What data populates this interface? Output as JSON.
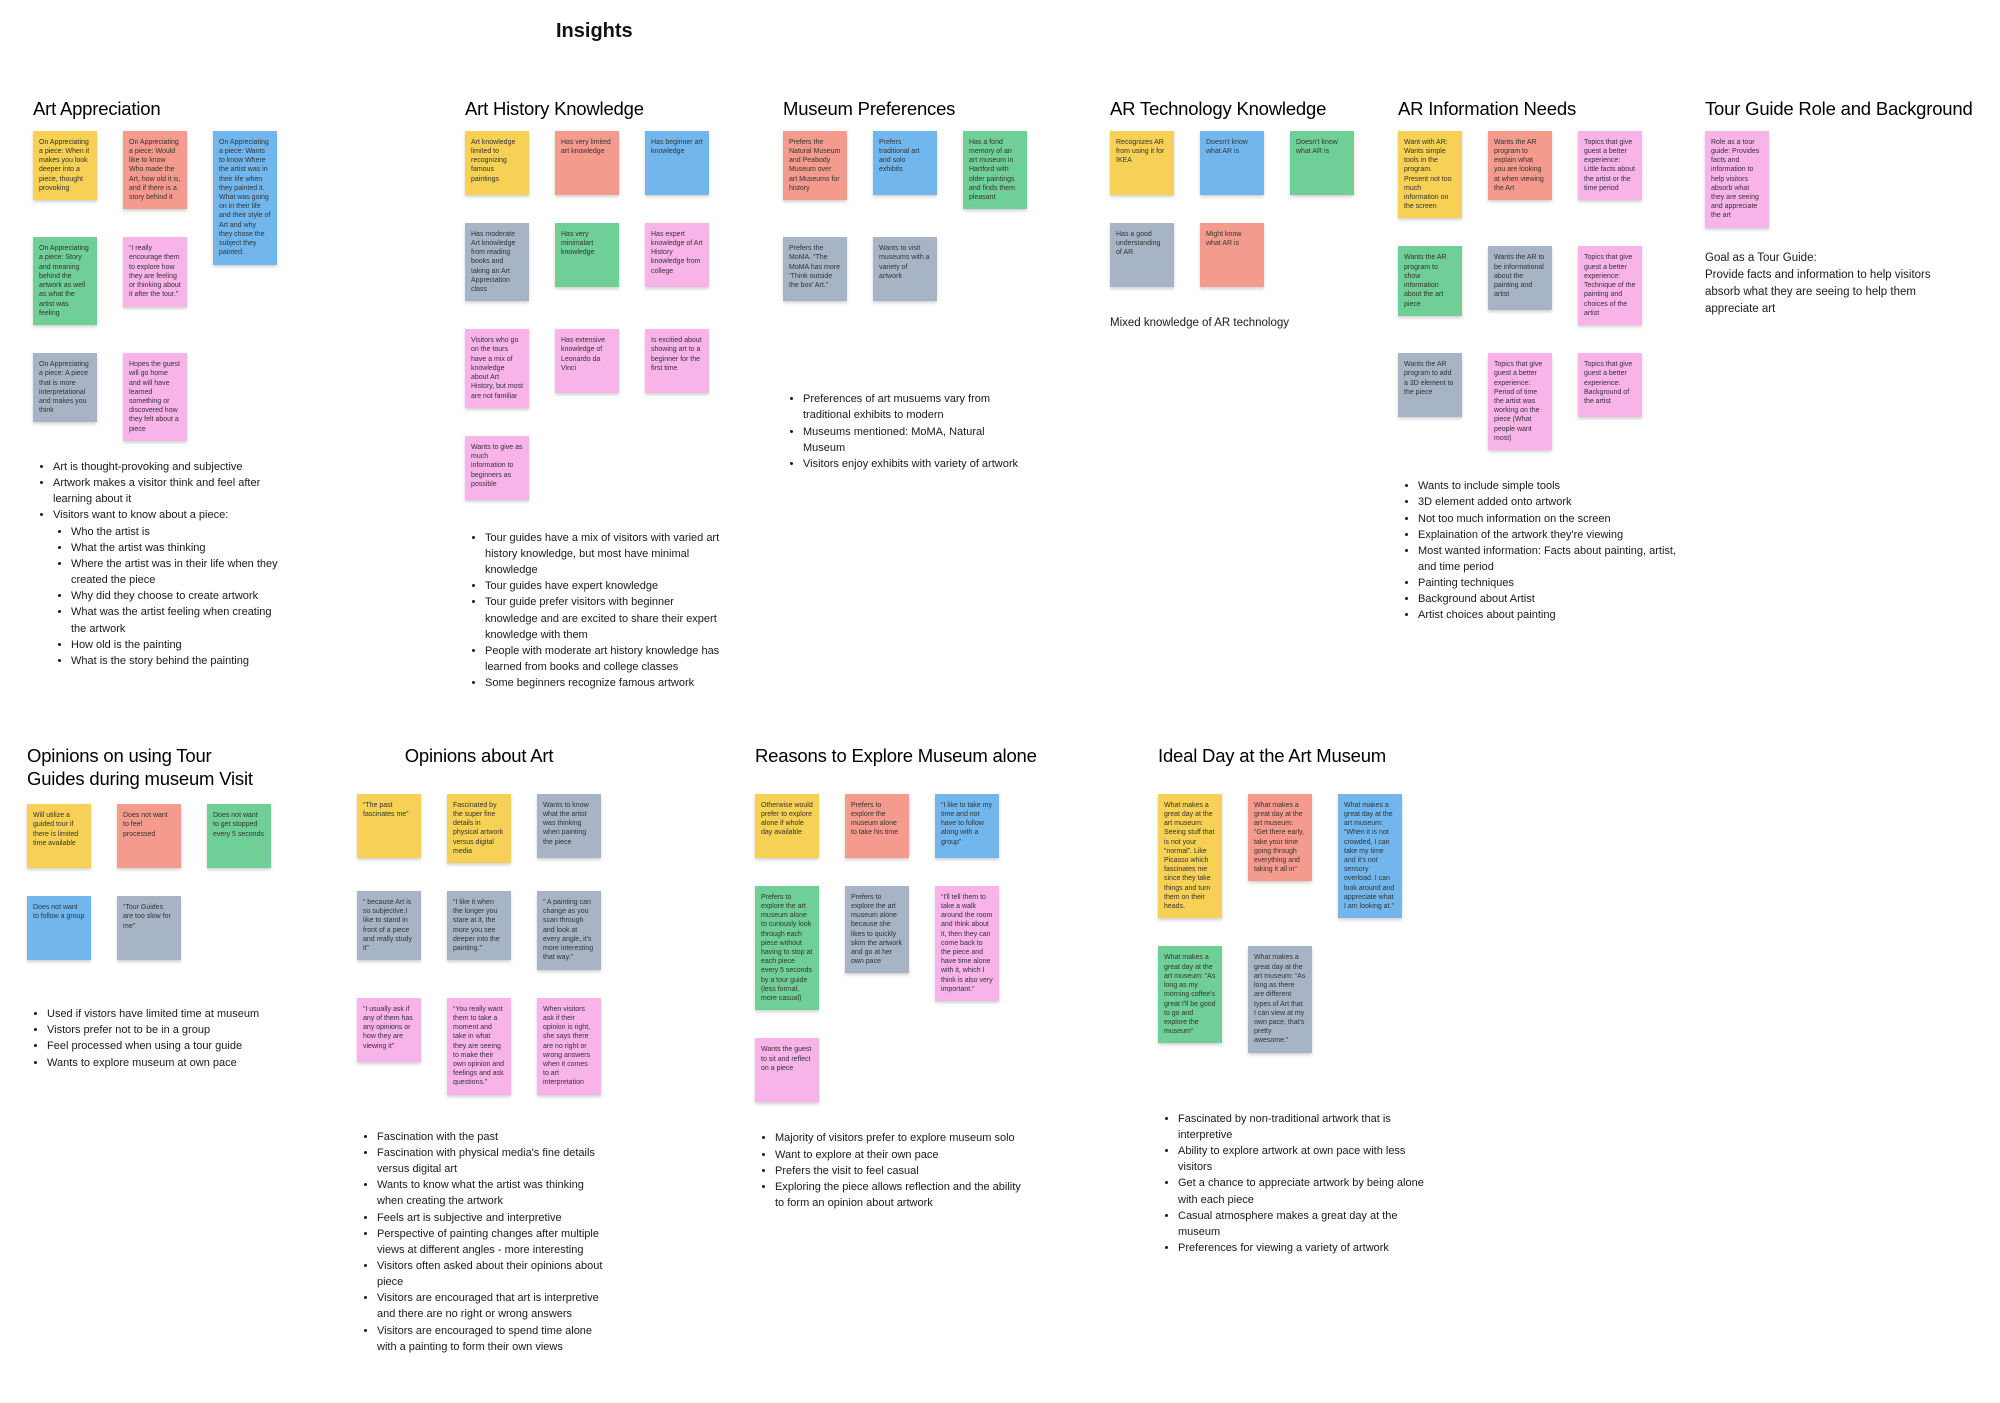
{
  "board": {
    "title": "Insights"
  },
  "colors": {
    "yellow": "#F6D155",
    "salmon": "#F49B8D",
    "blue": "#71B7EE",
    "green": "#70CF96",
    "gray": "#A7B4C5",
    "pink": "#F8B3E9"
  },
  "sections": [
    {
      "title": "Art Appreciation",
      "stickies": [
        {
          "color": "yellow",
          "text": "On Appreciating a piece: When it makes you look deeper into a piece, thought provoking"
        },
        {
          "color": "salmon",
          "text": "On Appreciating a piece:  Would like to know Who made the Art, how old it is, and if there is a story behind it"
        },
        {
          "color": "blue",
          "rowspan": 3,
          "text": "On Appreciating a piece: Wants to know Where the artist was in their life when they painted it. What was going on in their life and their style of Art and why they chose the subject they painted."
        },
        {
          "color": "green",
          "text": "On Appreciating a piece: Story and meaning behind the artwork as well as what the artist was feeling"
        },
        {
          "color": "pink",
          "text": "“I really encourage them to explore how they are feeling or thinking about it after the tour.”"
        },
        {
          "color": "gray",
          "text": "On Appreciating a piece: A piece that is more interpretational and makes you think"
        },
        {
          "color": "pink",
          "text": "Hopes the guest will go home and will have learned something or discovered how they felt about a piece"
        }
      ],
      "bullets": [
        "Art is thought-provoking and subjective",
        "Artwork makes a visitor think and feel after learning about it",
        {
          "text": "Visitors want to know about a piece:",
          "sub": [
            "Who the artist is",
            "What the artist was thinking",
            "Where the artist was in their life when they created the piece",
            "Why did they choose to create artwork",
            "What was the artist feeling when creating the artwork",
            "How old is the painting",
            "What is the story behind the painting"
          ]
        }
      ]
    },
    {
      "title": "Art History Knowledge",
      "stickies": [
        {
          "color": "yellow",
          "text": "Art knowledge limited to recognizing famous paintings"
        },
        {
          "color": "salmon",
          "text": "Has very limited art knowledge"
        },
        {
          "color": "blue",
          "text": "Has beginner art knowledge"
        },
        {
          "color": "gray",
          "text": "Has moderate Art knowledge from reading books and taking an Art Appreciation class"
        },
        {
          "color": "green",
          "text": "Has very minimalart knowledge"
        },
        {
          "color": "pink",
          "text": "Has expert knowledge of Art History knowledge from college"
        },
        {
          "color": "pink",
          "text": "Visitors who go on the tours have a mix of knowledge about Art History, but most are not familiar"
        },
        {
          "color": "pink",
          "text": "Has extensive knowledge of Leonardo da Vinci"
        },
        {
          "color": "pink",
          "text": "Is excitied about showing art to a beginner for the first time"
        },
        {
          "color": "pink",
          "text": "Wants to give as much information to beginners as possible"
        }
      ],
      "bullets": [
        "Tour guides have a mix of visitors with varied art history knowledge, but most have minimal knowledge",
        "Tour guides have expert knowledge",
        "Tour guide prefer visitors with beginner knowledge and are excited to share their expert knowledge with them",
        "People with moderate art history knowledge has learned from books and college classes",
        "Some beginners recognize famous artwork"
      ]
    },
    {
      "title": "Museum Preferences",
      "stickies": [
        {
          "color": "salmon",
          "text": "Prefers the Natural Museum and Peabody Museum over art Museums for history"
        },
        {
          "color": "blue",
          "text": "Prefers traditional art and solo exhibits"
        },
        {
          "color": "green",
          "text": "Has a fond memory of an art museum in Hartford with older paintings and finds them pleasant"
        },
        {
          "color": "gray",
          "text": "Prefers the MoMA. “The MoMA has more ‘Think outside the box’ Art.”"
        },
        {
          "color": "gray",
          "text": "Wants to visit museums with a variety of artwork"
        }
      ],
      "bullets": [
        "Preferences of art musuems vary from traditional exhibits to modern",
        "Museums mentioned: MoMA, Natural Museum",
        "Visitors enjoy exhibits with variety of artwork"
      ]
    },
    {
      "title": "AR Technology Knowledge",
      "stickies": [
        {
          "color": "yellow",
          "text": "Recognizes AR from using it for IKEA"
        },
        {
          "color": "blue",
          "text": "Doesn't know what AR is"
        },
        {
          "color": "green",
          "text": "Doesn't know what AR is"
        },
        {
          "color": "gray",
          "text": "Has a good understanding of AR"
        },
        {
          "color": "salmon",
          "text": "Might know what AR is"
        }
      ],
      "bullets": [],
      "note": "Mixed knowledge of AR technology"
    },
    {
      "title": "AR Information Needs",
      "stickies": [
        {
          "color": "yellow",
          "text": "Want with AR: Wants simple tools in the program. Present not too much information on the screen"
        },
        {
          "color": "salmon",
          "text": "Wants the AR program to explain what you are looking at when viewing the Art"
        },
        {
          "color": "pink",
          "text": "Topics that give guest a better experience:  Little facts about the artist or the time period"
        },
        {
          "color": "green",
          "text": "Wants the AR program to show information about the art piece"
        },
        {
          "color": "gray",
          "text": "Wants the AR to be informational about the painting and artist"
        },
        {
          "color": "pink",
          "text": "Topics that give guest a better experience: Technique of the painting and choices of the artist"
        },
        {
          "color": "gray",
          "text": "Wants the AR program to add a 3D element to the piece"
        },
        {
          "color": "pink",
          "text": "Topics that give guest a better experience: Period of time the artist was working on the piece (What people want most)"
        },
        {
          "color": "pink",
          "text": "Topics that give guest a better experience: Background of the artist"
        }
      ],
      "bullets": [
        "Wants to include simple tools",
        "3D element added onto artwork",
        "Not too much information on the screen",
        "Explaination of the artwork they're viewing",
        "Most wanted information: Facts about painting, artist, and time period",
        "Painting techniques",
        "Background about Artist",
        "Artist choices about painting"
      ]
    },
    {
      "title": "Tour Guide Role and Background",
      "stickies": [
        {
          "color": "pink",
          "text": "Role as a tour guide: Provides facts and information to help visitors absorb what they are seeing and appreciate the art"
        }
      ],
      "bullets": [],
      "goal": "Goal as a Tour Guide:\nProvide facts and information to help visitors absorb what they are seeing to help them appreciate art"
    },
    {
      "title": "Opinions on using Tour Guides during museum Visit",
      "stickies": [
        {
          "color": "yellow",
          "text": "Will utilize a guided tour if there is limited time available"
        },
        {
          "color": "salmon",
          "text": "Does not want to feel processed"
        },
        {
          "color": "green",
          "text": "Does not want to get stopped every 5 seconds"
        },
        {
          "color": "blue",
          "text": "Does not want to follow a group"
        },
        {
          "color": "gray",
          "text": "“Tour Guides are too slow for me”"
        }
      ],
      "bullets": [
        "Used if vistors have limited time at museum",
        "Vistors prefer not to be in a group",
        "Feel processed when using a tour guide",
        "Wants to explore museum at own pace"
      ]
    },
    {
      "title": "Opinions about Art",
      "stickies": [
        {
          "color": "yellow",
          "text": "“The past fascinates me”"
        },
        {
          "color": "yellow",
          "text": "Fascinated by the super fine details in physical artwork versus digital media"
        },
        {
          "color": "gray",
          "text": "Wants to know what the artist was thinking when painting the piece"
        },
        {
          "color": "gray",
          "text": "“ because Art is so subjective,I like to stand in front of a piece and really study it”"
        },
        {
          "color": "gray",
          "text": "“I like it when the longer you stare at it, the more you see deeper into the painting.”"
        },
        {
          "color": "gray",
          "text": "“ A painting can change as you scan through and look at every angle, it's more interesting that way.”"
        },
        {
          "color": "pink",
          "text": "“I usually ask if any of them has any opinions or how they are viewing it”"
        },
        {
          "color": "pink",
          "text": "“You really want them to take a moment and take in what they are seeing to make their own opinion and feelings and ask questions.”"
        },
        {
          "color": "pink",
          "text": "When visitors ask if their opinion is right, she says there are no right or wrong answers when it comes to art interpretation"
        }
      ],
      "bullets": [
        "Fascination with the past",
        "Fascination with physical media's fine details versus digital art",
        "Wants to know what the artist was thinking when creating the artwork",
        "Feels art is subjective and interpretive",
        "Perspective of painting changes after multiple views at different angles - more interesting",
        "Visitors often asked about their opinions about piece",
        "Visitors are encouraged that art is interpretive and there are no right or wrong answers",
        "Visitors are encouraged to spend time alone with a painting to form their own views"
      ]
    },
    {
      "title": "Reasons to Explore Museum alone",
      "stickies": [
        {
          "color": "yellow",
          "text": "Otherwise would prefer to explore alone if whole day available"
        },
        {
          "color": "salmon",
          "text": "Prefers to explore the museum alone to take his time"
        },
        {
          "color": "blue",
          "text": "“I like to take my time and not have to follow along with a group”"
        },
        {
          "color": "green",
          "text": "Prefers to explore the art museum alone to curiously look through each piece without having to stop at each piece every 5 seconds by a tour guide (less formal, more casual)"
        },
        {
          "color": "gray",
          "text": "Prefers to explore the art museum alone because she likes to quickly skim the artwork and go at her own pace"
        },
        {
          "color": "pink",
          "text": "“I'll tell them to take a walk around the room and think about it, then they can come back to the piece and have time alone with it, which I think is also very important.”"
        },
        {
          "color": "pink",
          "text": "Wants the guest to sit and reflect on a piece"
        }
      ],
      "bullets": [
        "Majority of visitors prefer to explore museum solo",
        "Want to explore at their own pace",
        "Prefers the visit to feel casual",
        "Exploring the piece allows reflection and the ability to form an opinion about artwork"
      ]
    },
    {
      "title": "Ideal Day at the Art Museum",
      "stickies": [
        {
          "color": "yellow",
          "text": "What makes a great day at the art museum: Seeing stuff that is not your “normal”. Like Picasso which fascinates me since they take things and turn them on their heads."
        },
        {
          "color": "salmon",
          "text": "What makes a great day at the art museum: “Get there early, take your time going through everything and taking it all in”"
        },
        {
          "color": "blue",
          "text": "What makes a great day at the art museum: “When it is not crowded, I can take my time and it's not sensory overload. I can look around and appreciate what I am looking at.”"
        },
        {
          "color": "green",
          "text": "What makes a great day at the art museum: “As long as my morning coffee's great I'll be good to go and explore the museum”"
        },
        {
          "color": "gray",
          "text": "What makes a great day at the art museum: “As long as there are different types of Art that I can view at my own pace, that's pretty awesome.”"
        }
      ],
      "bullets": [
        "Fascinated by non-traditional artwork that is interpretive",
        "Ability to explore artwork at own pace with less visitors",
        "Get a chance to appreciate artwork by being alone with each piece",
        "Casual atmosphere makes a great day at the museum",
        "Preferences for viewing a variety of artwork"
      ]
    }
  ]
}
